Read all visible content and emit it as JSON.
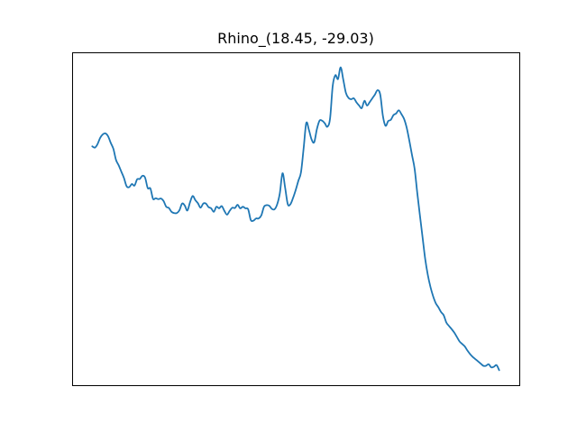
{
  "chart_data": {
    "type": "line",
    "title": "Rhino_(18.45, -29.03)",
    "xlabel": "",
    "ylabel": "",
    "grid": false,
    "ticks_visible": false,
    "series": [
      {
        "color": "#1f77b4",
        "values": [
          0.727,
          0.723,
          0.734,
          0.754,
          0.765,
          0.768,
          0.759,
          0.738,
          0.719,
          0.684,
          0.667,
          0.647,
          0.627,
          0.601,
          0.598,
          0.608,
          0.603,
          0.623,
          0.624,
          0.634,
          0.628,
          0.595,
          0.594,
          0.561,
          0.563,
          0.56,
          0.562,
          0.554,
          0.536,
          0.532,
          0.52,
          0.516,
          0.516,
          0.525,
          0.546,
          0.54,
          0.524,
          0.55,
          0.57,
          0.557,
          0.547,
          0.533,
          0.546,
          0.546,
          0.535,
          0.531,
          0.52,
          0.536,
          0.531,
          0.538,
          0.523,
          0.511,
          0.523,
          0.533,
          0.532,
          0.542,
          0.531,
          0.536,
          0.531,
          0.528,
          0.494,
          0.492,
          0.499,
          0.499,
          0.509,
          0.536,
          0.541,
          0.539,
          0.529,
          0.528,
          0.544,
          0.579,
          0.642,
          0.596,
          0.544,
          0.544,
          0.564,
          0.589,
          0.618,
          0.645,
          0.721,
          0.801,
          0.779,
          0.749,
          0.74,
          0.781,
          0.808,
          0.808,
          0.8,
          0.789,
          0.815,
          0.918,
          0.952,
          0.94,
          0.977,
          0.938,
          0.896,
          0.88,
          0.876,
          0.879,
          0.866,
          0.856,
          0.848,
          0.871,
          0.856,
          0.867,
          0.879,
          0.891,
          0.905,
          0.89,
          0.823,
          0.792,
          0.807,
          0.811,
          0.826,
          0.831,
          0.841,
          0.829,
          0.814,
          0.786,
          0.745,
          0.7,
          0.656,
          0.58,
          0.509,
          0.44,
          0.371,
          0.32,
          0.282,
          0.253,
          0.231,
          0.218,
          0.203,
          0.193,
          0.17,
          0.159,
          0.149,
          0.138,
          0.124,
          0.11,
          0.102,
          0.094,
          0.081,
          0.07,
          0.061,
          0.054,
          0.047,
          0.04,
          0.033,
          0.033,
          0.038,
          0.028,
          0.03,
          0.035,
          0.019
        ]
      }
    ]
  }
}
